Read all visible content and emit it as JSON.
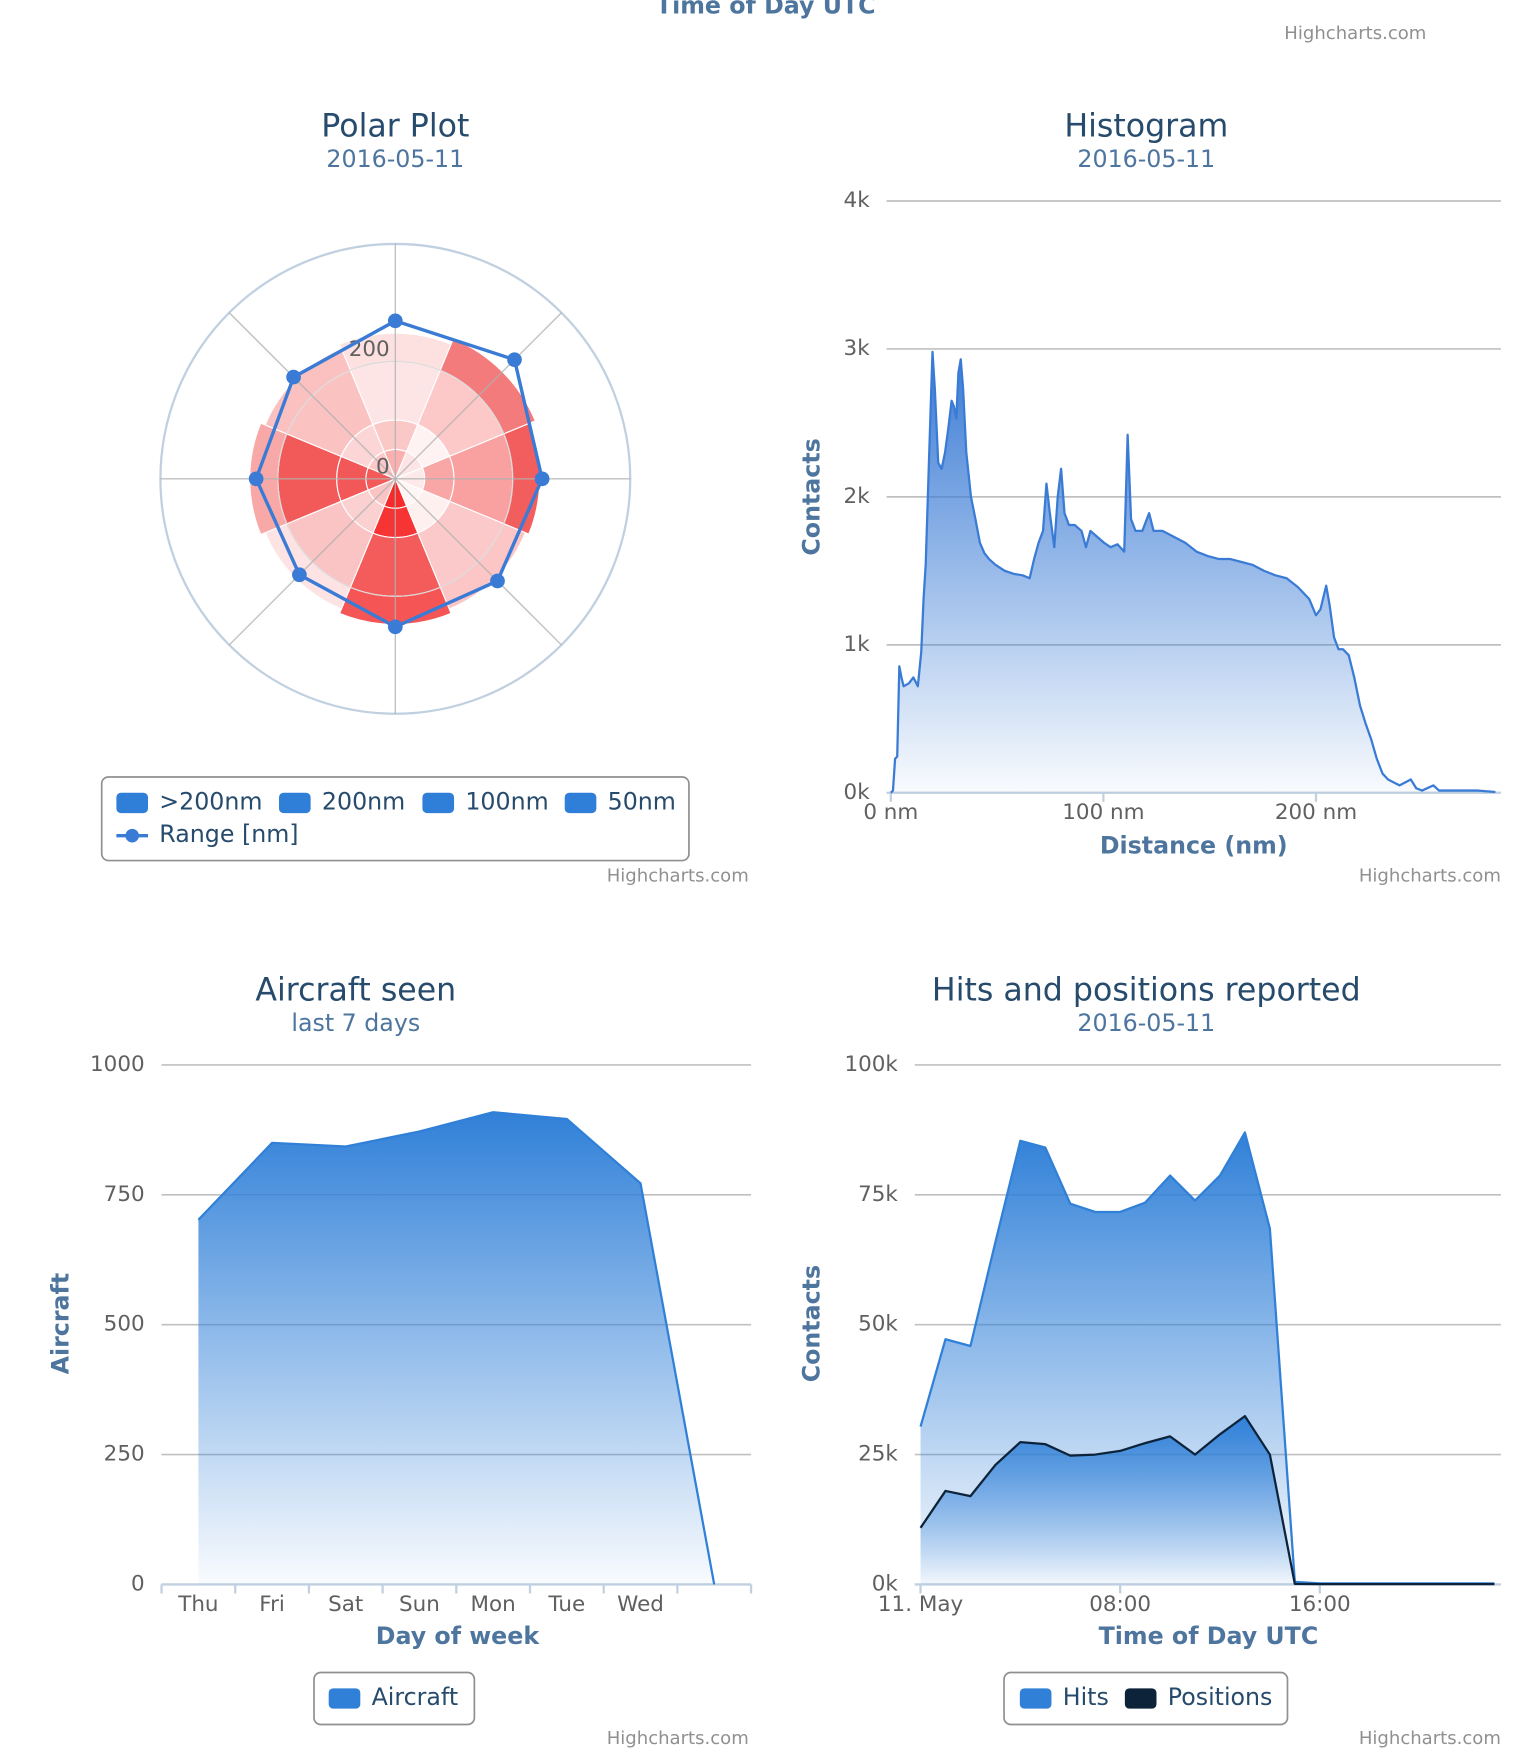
{
  "header": {
    "axis_label": "Time of Day UTC",
    "credit": "Highcharts.com"
  },
  "chart_data": [
    {
      "type": "polar",
      "title": "Polar Plot",
      "subtitle": "2016-05-11",
      "credit": "Highcharts.com",
      "ylim": [
        0,
        400
      ],
      "yticks": [
        0,
        200
      ],
      "series": [
        {
          "name": ">200nm",
          "type": "column",
          "color": "#2f7ed8",
          "values": [
            48,
            58,
            46,
            40,
            48,
            40,
            48,
            40
          ],
          "point_colors": [
            "#fde0e0",
            "#f47b7b",
            "#f25e5e",
            "#fcc6c6",
            "#f55555",
            "#fde3e3",
            "#f9a8a8",
            "#fbc0c0"
          ]
        },
        {
          "name": "200nm",
          "type": "column",
          "color": "#2f7ed8",
          "values": [
            100,
            100,
            100,
            100,
            100,
            100,
            100,
            100
          ],
          "point_colors": [
            "#fde5e5",
            "#fcc8c8",
            "#f9a0a0",
            "#fbc9c9",
            "#f45c5c",
            "#fbc4c4",
            "#f25a5a",
            "#fbc2c2"
          ]
        },
        {
          "name": "100nm",
          "type": "column",
          "color": "#2f7ed8",
          "values": [
            50,
            50,
            50,
            50,
            50,
            50,
            50,
            50
          ],
          "point_colors": [
            "#fbc8c8",
            "#fff2f2",
            "#f9a6a6",
            "#fff0f0",
            "#f73434",
            "#fbd0d0",
            "#f25858",
            "#fcd6d6"
          ]
        },
        {
          "name": "50nm",
          "type": "column",
          "color": "#2f7ed8",
          "values": [
            50,
            50,
            50,
            50,
            50,
            50,
            50,
            50
          ],
          "point_colors": [
            "#fbb0b0",
            "#fde5e5",
            "#fde9e9",
            "#fff5f5",
            "#f52a2a",
            "#fbc4c4",
            "#f35a5a",
            "#fcc8c8"
          ]
        },
        {
          "name": "Range [nm]",
          "type": "line",
          "color": "#3a7bd5",
          "values": [
            269,
            287,
            250,
            246,
            252,
            231,
            237,
            245
          ]
        }
      ]
    },
    {
      "type": "area",
      "title": "Histogram",
      "subtitle": "2016-05-11",
      "credit": "Highcharts.com",
      "x_label": "Distance (nm)",
      "y_label": "Contacts",
      "color": "#3a7bd5",
      "xlim": [
        -2,
        287
      ],
      "xticks": [
        {
          "value": 0,
          "label": "0 nm"
        },
        {
          "value": 100,
          "label": "100 nm"
        },
        {
          "value": 200,
          "label": "200 nm"
        }
      ],
      "ylim": [
        0,
        4000
      ],
      "yticks": [
        {
          "value": 0,
          "label": "0k"
        },
        {
          "value": 1000,
          "label": "1k"
        },
        {
          "value": 2000,
          "label": "2k"
        },
        {
          "value": 3000,
          "label": "3k"
        },
        {
          "value": 4000,
          "label": "4k"
        }
      ],
      "x": [
        0,
        1,
        2,
        3,
        4,
        5,
        6,
        8.5,
        10.6,
        12.7,
        14.3,
        15.4,
        16.4,
        18,
        19.6,
        20.7,
        22.3,
        23.9,
        25.5,
        27,
        28.6,
        29.7,
        30.8,
        31.8,
        32.9,
        34,
        35.5,
        37.7,
        39.8,
        41.9,
        44,
        46.2,
        49.3,
        53.6,
        57.8,
        62,
        65.3,
        67.4,
        69.5,
        71.6,
        73.2,
        74.8,
        76.9,
        78.5,
        80.1,
        81.7,
        83.8,
        86.5,
        89.7,
        91.8,
        93.9,
        97.1,
        100.3,
        103.4,
        106.6,
        109.8,
        111.4,
        113,
        115.1,
        118.3,
        121.5,
        123.6,
        127.8,
        133.2,
        138.5,
        143.8,
        149.1,
        154.4,
        159.7,
        165,
        170.3,
        175.6,
        180.9,
        186.2,
        191.5,
        196.8,
        200,
        202.1,
        204.8,
        206.4,
        208.5,
        210.6,
        212.7,
        215.4,
        218,
        220.7,
        223.3,
        226,
        228.6,
        231.3,
        233.9,
        239.3,
        244.6,
        247.2,
        249.9,
        255.2,
        257.9,
        265.8,
        276.4,
        284.4
      ],
      "values": [
        0,
        15,
        230,
        245,
        855,
        780,
        720,
        740,
        780,
        720,
        950,
        1310,
        1540,
        2270,
        2980,
        2730,
        2230,
        2190,
        2300,
        2460,
        2650,
        2610,
        2530,
        2840,
        2930,
        2730,
        2300,
        2000,
        1850,
        1690,
        1620,
        1580,
        1540,
        1500,
        1480,
        1470,
        1450,
        1580,
        1690,
        1770,
        2090,
        1890,
        1660,
        2000,
        2190,
        1890,
        1810,
        1810,
        1770,
        1660,
        1770,
        1730,
        1690,
        1660,
        1680,
        1630,
        2420,
        1850,
        1770,
        1770,
        1890,
        1770,
        1770,
        1730,
        1690,
        1630,
        1600,
        1580,
        1580,
        1560,
        1540,
        1500,
        1470,
        1450,
        1390,
        1310,
        1200,
        1240,
        1400,
        1270,
        1050,
        970,
        970,
        930,
        780,
        590,
        470,
        360,
        230,
        130,
        90,
        50,
        90,
        30,
        15,
        50,
        15,
        15,
        15,
        5
      ]
    },
    {
      "type": "area",
      "title": "Aircraft seen",
      "subtitle": "last 7 days",
      "credit": "Highcharts.com",
      "x_label": "Day of week",
      "y_label": "Aircraft",
      "categories": [
        "Thu",
        "Fri",
        "Sat",
        "Sun",
        "Mon",
        "Tue",
        "Wed",
        null
      ],
      "ylim": [
        0,
        1000
      ],
      "yticks": [
        0,
        250,
        500,
        750,
        1000
      ],
      "series": [
        {
          "name": "Aircraft",
          "color": "#3080d8",
          "values": [
            702,
            850,
            843,
            872,
            909,
            896,
            772,
            0
          ]
        }
      ]
    },
    {
      "type": "area",
      "title": "Hits and positions reported",
      "subtitle": "2016-05-11",
      "credit": "Highcharts.com",
      "x_label": "Time of Day UTC",
      "y_label": "Contacts",
      "xlim": [
        -0.23,
        23.26
      ],
      "xticks": [
        {
          "value": 0,
          "label": "11. May"
        },
        {
          "value": 8,
          "label": "08:00"
        },
        {
          "value": 16,
          "label": "16:00"
        }
      ],
      "ylim": [
        0,
        100000
      ],
      "yticks": [
        {
          "value": 0,
          "label": "0k"
        },
        {
          "value": 25000,
          "label": "25k"
        },
        {
          "value": 50000,
          "label": "50k"
        },
        {
          "value": 75000,
          "label": "75k"
        },
        {
          "value": 100000,
          "label": "100k"
        }
      ],
      "x": [
        0,
        1,
        2,
        3,
        4,
        5,
        6,
        7,
        8,
        9,
        10,
        11,
        12,
        13,
        14,
        15,
        16,
        17,
        18,
        19,
        20,
        21,
        22,
        23
      ],
      "series": [
        {
          "name": "Hits",
          "color": "#3080d8",
          "values": [
            30400,
            47200,
            45900,
            65900,
            85400,
            84100,
            73300,
            71700,
            71700,
            73500,
            78700,
            73900,
            78700,
            87000,
            68500,
            500,
            200,
            200,
            200,
            200,
            200,
            200,
            200,
            200
          ]
        },
        {
          "name": "Positions",
          "color": "#0d233a",
          "fill_color": "#3080d8",
          "values": [
            10900,
            18000,
            17000,
            23000,
            27400,
            27000,
            24800,
            25000,
            25700,
            27200,
            28500,
            25000,
            28900,
            32400,
            25000,
            100,
            50,
            50,
            50,
            50,
            50,
            50,
            50,
            50
          ]
        }
      ]
    }
  ]
}
